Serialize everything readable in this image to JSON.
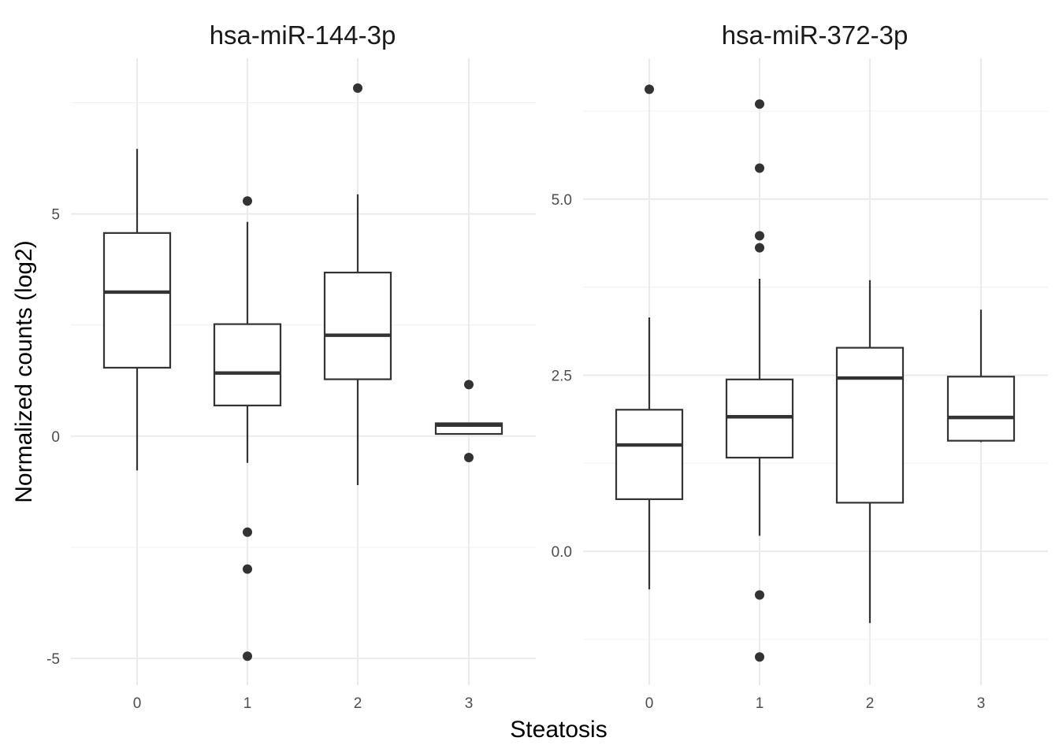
{
  "chart_data": {
    "type": "box",
    "xlabel": "Steatosis",
    "ylabel": "Normalized counts (log2)",
    "grid": true,
    "panels": [
      {
        "title": "hsa-miR-144-3p",
        "categories": [
          "0",
          "1",
          "2",
          "3"
        ],
        "ylim": [
          -5.6,
          8.5
        ],
        "y_ticks": [
          -5,
          0,
          5
        ],
        "y_tick_labels": [
          "-5",
          "0",
          "5"
        ],
        "boxes": [
          {
            "category": "0",
            "lower_whisker": -0.77,
            "q1": 1.54,
            "median": 3.24,
            "q3": 4.57,
            "upper_whisker": 6.46,
            "outliers": []
          },
          {
            "category": "1",
            "lower_whisker": -0.6,
            "q1": 0.69,
            "median": 1.42,
            "q3": 2.52,
            "upper_whisker": 4.82,
            "outliers": [
              5.29,
              -2.16,
              -2.99,
              -4.95
            ]
          },
          {
            "category": "2",
            "lower_whisker": -1.1,
            "q1": 1.28,
            "median": 2.27,
            "q3": 3.68,
            "upper_whisker": 5.44,
            "outliers": [
              7.83
            ]
          },
          {
            "category": "3",
            "lower_whisker": 0.05,
            "q1": 0.05,
            "median": 0.25,
            "q3": 0.29,
            "upper_whisker": 0.29,
            "outliers": [
              1.16,
              -0.48
            ]
          }
        ]
      },
      {
        "title": "hsa-miR-372-3p",
        "categories": [
          "0",
          "1",
          "2",
          "3"
        ],
        "ylim": [
          -1.9,
          7.0
        ],
        "y_ticks": [
          0,
          2.5,
          5
        ],
        "y_tick_labels": [
          "0.0",
          "2.5",
          "5.0"
        ],
        "boxes": [
          {
            "category": "0",
            "lower_whisker": -0.54,
            "q1": 0.74,
            "median": 1.51,
            "q3": 2.01,
            "upper_whisker": 3.32,
            "outliers": [
              6.56
            ]
          },
          {
            "category": "1",
            "lower_whisker": 0.22,
            "q1": 1.33,
            "median": 1.91,
            "q3": 2.44,
            "upper_whisker": 3.87,
            "outliers": [
              6.35,
              5.44,
              4.48,
              4.31,
              -0.62,
              -1.5
            ]
          },
          {
            "category": "2",
            "lower_whisker": -1.02,
            "q1": 0.69,
            "median": 2.46,
            "q3": 2.89,
            "upper_whisker": 3.85,
            "outliers": []
          },
          {
            "category": "3",
            "lower_whisker": 1.55,
            "q1": 1.57,
            "median": 1.9,
            "q3": 2.48,
            "upper_whisker": 3.43,
            "outliers": []
          }
        ]
      }
    ]
  }
}
